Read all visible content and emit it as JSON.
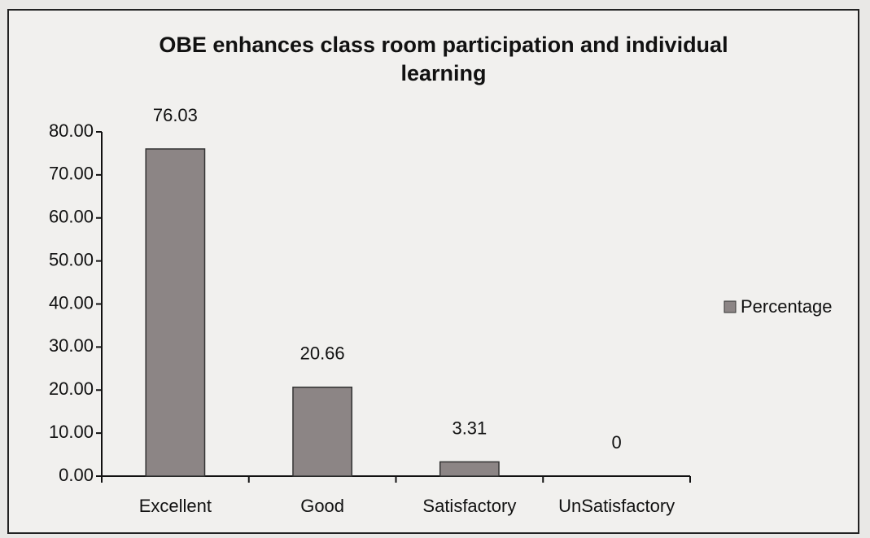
{
  "chart_data": {
    "type": "bar",
    "title": "OBE enhances class room participation and individual learning",
    "categories": [
      "Excellent",
      "Good",
      "Satisfactory",
      "UnSatisfactory"
    ],
    "series": [
      {
        "name": "Percentage",
        "color": "#8c8585",
        "values": [
          76.03,
          20.66,
          3.31,
          0
        ]
      }
    ],
    "ylim": [
      0,
      80
    ],
    "yticks": [
      {
        "value": 0,
        "label": "0.00"
      },
      {
        "value": 10,
        "label": "10.00"
      },
      {
        "value": 20,
        "label": "20.00"
      },
      {
        "value": 30,
        "label": "30.00"
      },
      {
        "value": 40,
        "label": "40.00"
      },
      {
        "value": 50,
        "label": "50.00"
      },
      {
        "value": 60,
        "label": "60.00"
      },
      {
        "value": 70,
        "label": "70.00"
      },
      {
        "value": 80,
        "label": "80.00"
      }
    ],
    "grid": false,
    "legend": "right"
  }
}
